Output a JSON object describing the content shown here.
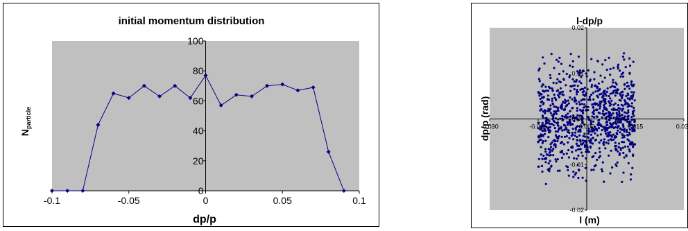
{
  "chart_data": [
    {
      "type": "line",
      "title": "initial momentum distribution",
      "xlabel": "dp/p",
      "ylabel_main": "N",
      "ylabel_sub": "particle",
      "xlim": [
        -0.1,
        0.1
      ],
      "ylim": [
        0,
        100
      ],
      "x_ticks": [
        "-0.1",
        "-0.05",
        "0",
        "0.05",
        "0.1"
      ],
      "y_ticks": [
        "0",
        "20",
        "40",
        "60",
        "80",
        "100"
      ],
      "plot_bg": "#c0c0c0",
      "series_color": "#000080",
      "grid": false,
      "x": [
        -0.1,
        -0.09,
        -0.08,
        -0.07,
        -0.06,
        -0.05,
        -0.04,
        -0.03,
        -0.02,
        -0.01,
        0,
        0.01,
        0.02,
        0.03,
        0.04,
        0.05,
        0.06,
        0.07,
        0.08,
        0.09
      ],
      "values": [
        0,
        0,
        0,
        44,
        65,
        62,
        70,
        63,
        70,
        62,
        77,
        57,
        64,
        63,
        70,
        71,
        67,
        69,
        26,
        0
      ]
    },
    {
      "type": "scatter",
      "title": "l-dp/p",
      "xlabel": "l (m)",
      "ylabel": "dp/p (rad)",
      "xlim": [
        -0.03,
        0.03
      ],
      "ylim": [
        -0.02,
        0.02
      ],
      "x_ticks": [
        "-0.030",
        "-0.015",
        "0.000",
        "0.015",
        "0.030"
      ],
      "y_ticks": [
        "-0.02",
        "-0.01",
        "0.00",
        "0.01",
        "0.02"
      ],
      "plot_bg": "#c0c0c0",
      "series_color": "#000080",
      "grid": false,
      "point_cloud": {
        "x_range": [
          -0.015,
          0.015
        ],
        "y_range": [
          -0.015,
          0.015
        ],
        "approx_count": 1000
      }
    }
  ]
}
